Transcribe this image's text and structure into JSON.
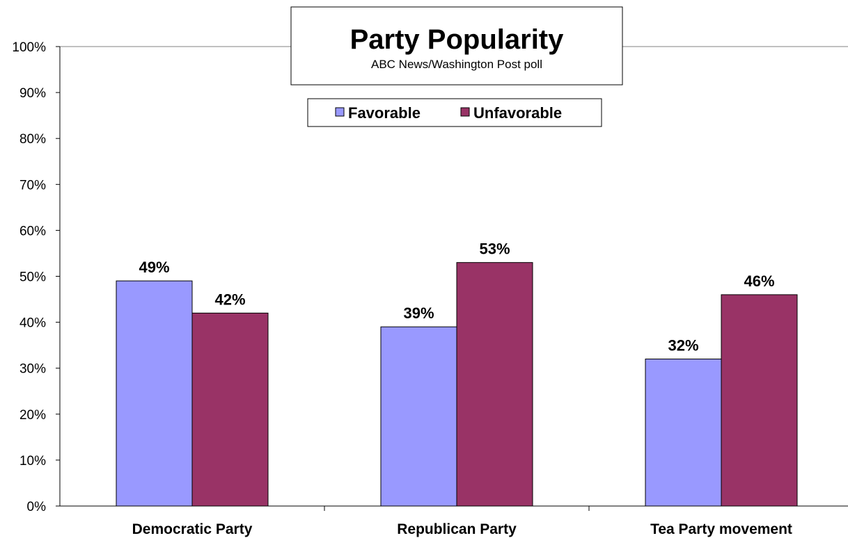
{
  "chart_data": {
    "type": "bar",
    "title": "Party Popularity",
    "subtitle": "ABC News/Washington Post poll",
    "categories": [
      "Democratic Party",
      "Republican Party",
      "Tea Party movement"
    ],
    "series": [
      {
        "name": "Favorable",
        "color": "#9999ff",
        "values": [
          49,
          39,
          32
        ],
        "labels": [
          "49%",
          "39%",
          "32%"
        ]
      },
      {
        "name": "Unfavorable",
        "color": "#993366",
        "values": [
          42,
          53,
          46
        ],
        "labels": [
          "42%",
          "53%",
          "46%"
        ]
      }
    ],
    "ylim": [
      0,
      100
    ],
    "yticks": [
      "0%",
      "10%",
      "20%",
      "30%",
      "40%",
      "50%",
      "60%",
      "70%",
      "80%",
      "90%",
      "100%"
    ],
    "grid": "top line only",
    "legend": "top-center"
  }
}
